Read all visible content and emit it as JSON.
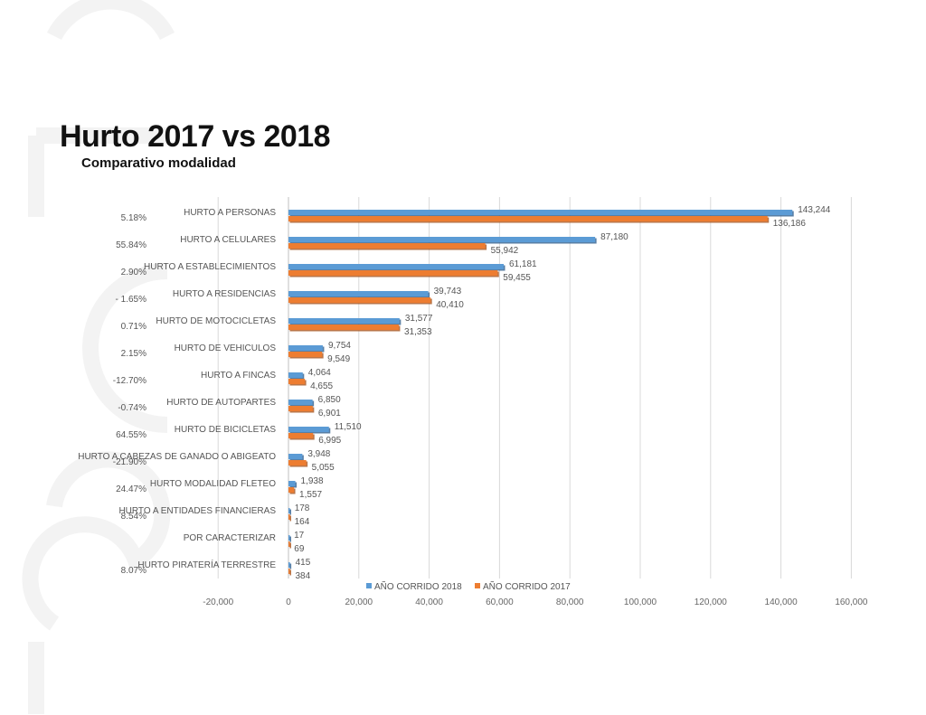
{
  "header": {
    "title": "Hurto 2017 vs 2018",
    "subtitle": "Comparativo modalidad"
  },
  "colors": {
    "series_2018": "#5b9bd5",
    "series_2018_edge": "#2f5f8e",
    "series_2017": "#ed7d31",
    "series_2017_edge": "#a9541c",
    "grid": "#d9d9d9",
    "watermark": "#f3f3f3"
  },
  "chart_data": {
    "type": "bar",
    "orientation": "horizontal",
    "categories": [
      "HURTO A PERSONAS",
      "HURTO A CELULARES",
      "HURTO A ESTABLECIMIENTOS",
      "HURTO A RESIDENCIAS",
      "HURTO DE MOTOCICLETAS",
      "HURTO DE VEHICULOS",
      "HURTO A FINCAS",
      "HURTO DE AUTOPARTES",
      "HURTO DE BICICLETAS",
      "HURTO A CABEZAS DE GANADO O ABIGEATO",
      "HURTO MODALIDAD FLETEO",
      "HURTO A ENTIDADES FINANCIERAS",
      "POR CARACTERIZAR",
      "HURTO PIRATERÍA TERRESTRE"
    ],
    "percent_change": [
      "5.18%",
      "55.84%",
      "2.90%",
      "- 1.65%",
      "0.71%",
      "2.15%",
      "-12.70%",
      "-0.74%",
      "64.55%",
      "-21.90%",
      "24.47%",
      "8.54%",
      "",
      "8.07%"
    ],
    "series": [
      {
        "name": "AÑO CORRIDO 2018",
        "values": [
          143244,
          87180,
          61181,
          39743,
          31577,
          9754,
          4064,
          6850,
          11510,
          3948,
          1938,
          178,
          17,
          415
        ]
      },
      {
        "name": "AÑO CORRIDO 2017",
        "values": [
          136186,
          55942,
          59455,
          40410,
          31353,
          9549,
          4655,
          6901,
          6995,
          5055,
          1557,
          164,
          69,
          384
        ]
      }
    ],
    "value_labels": [
      [
        "143,244",
        "87,180",
        "61,181",
        "39,743",
        "31,577",
        "9,754",
        "4,064",
        "6,850",
        "11,510",
        "3,948",
        "1,938",
        "178",
        "17",
        "415"
      ],
      [
        "136,186",
        "55,942",
        "59,455",
        "40,410",
        "31,353",
        "9,549",
        "4,655",
        "6,901",
        "6,995",
        "5,055",
        "1,557",
        "164",
        "69",
        "384"
      ]
    ],
    "xlim": [
      -20000,
      160000
    ],
    "x_ticks": [
      -20000,
      0,
      20000,
      40000,
      60000,
      80000,
      100000,
      120000,
      140000,
      160000
    ],
    "x_tick_labels": [
      "-20,000",
      "0",
      "20,000",
      "40,000",
      "60,000",
      "80,000",
      "100,000",
      "120,000",
      "140,000",
      "160,000"
    ],
    "grid": true,
    "legend_placement": "bottom",
    "xlabel": "",
    "ylabel": ""
  }
}
